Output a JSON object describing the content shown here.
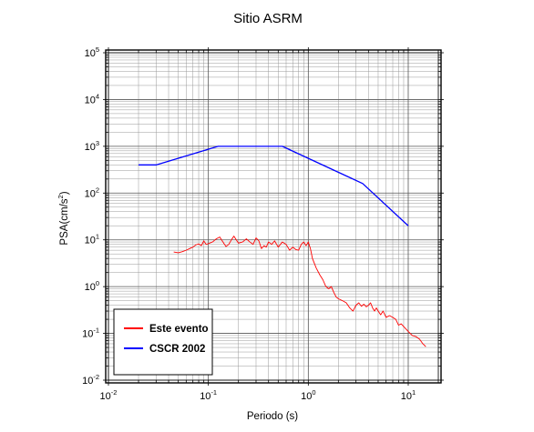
{
  "chart_data": {
    "type": "line",
    "title": "Sitio ASRM",
    "xlabel": "Periodo (s)",
    "ylabel": "PSA(cm/s²)",
    "ylabel_parts": {
      "base": "PSA(cm/s",
      "sup": "2",
      "end": ")"
    },
    "x_scale": "log",
    "y_scale": "log",
    "xlim": [
      0.01,
      20
    ],
    "ylim": [
      0.01,
      100000
    ],
    "grid": true,
    "legend_position": "bottom-left",
    "x_ticks": [
      {
        "value": 0.01,
        "base": "10",
        "exp": "-2"
      },
      {
        "value": 0.1,
        "base": "10",
        "exp": "-1"
      },
      {
        "value": 1,
        "base": "10",
        "exp": "0"
      },
      {
        "value": 10,
        "base": "10",
        "exp": "1"
      }
    ],
    "y_ticks": [
      {
        "value": 0.01,
        "base": "10",
        "exp": "-2"
      },
      {
        "value": 0.1,
        "base": "10",
        "exp": "-1"
      },
      {
        "value": 1,
        "base": "10",
        "exp": "0"
      },
      {
        "value": 10,
        "base": "10",
        "exp": "1"
      },
      {
        "value": 100,
        "base": "10",
        "exp": "2"
      },
      {
        "value": 1000,
        "base": "10",
        "exp": "3"
      },
      {
        "value": 10000,
        "base": "10",
        "exp": "4"
      },
      {
        "value": 100000,
        "base": "10",
        "exp": "5"
      }
    ],
    "series": [
      {
        "name": "Este evento",
        "color": "#ff0000",
        "x": [
          0.045,
          0.05,
          0.055,
          0.06,
          0.065,
          0.07,
          0.075,
          0.08,
          0.085,
          0.09,
          0.095,
          0.1,
          0.11,
          0.12,
          0.13,
          0.14,
          0.15,
          0.16,
          0.17,
          0.18,
          0.2,
          0.22,
          0.24,
          0.26,
          0.28,
          0.3,
          0.32,
          0.34,
          0.36,
          0.38,
          0.4,
          0.43,
          0.46,
          0.5,
          0.55,
          0.6,
          0.65,
          0.7,
          0.75,
          0.8,
          0.85,
          0.9,
          0.95,
          1.0,
          1.05,
          1.1,
          1.2,
          1.3,
          1.4,
          1.5,
          1.6,
          1.7,
          1.8,
          1.9,
          2.0,
          2.2,
          2.4,
          2.6,
          2.8,
          3.0,
          3.2,
          3.4,
          3.6,
          3.8,
          4.0,
          4.2,
          4.4,
          4.6,
          4.8,
          5.0,
          5.3,
          5.6,
          6.0,
          6.5,
          7.0,
          7.5,
          8.0,
          8.5,
          9.0,
          10.0,
          11.0,
          12.0,
          13.0,
          14.0,
          15.0
        ],
        "y": [
          5.5,
          5.3,
          5.6,
          6.0,
          6.5,
          7.0,
          7.8,
          8.2,
          7.5,
          9.5,
          8.0,
          8.3,
          9.0,
          10.5,
          11.5,
          9.0,
          7.2,
          8.0,
          10.0,
          12.0,
          8.5,
          9.0,
          10.5,
          9.0,
          8.0,
          11.0,
          9.5,
          6.5,
          7.5,
          7.0,
          9.0,
          8.0,
          9.5,
          7.0,
          9.0,
          8.0,
          6.0,
          7.0,
          6.2,
          6.0,
          8.0,
          9.0,
          7.5,
          9.0,
          6.5,
          4.0,
          2.5,
          1.8,
          1.4,
          1.0,
          0.9,
          1.0,
          0.75,
          0.6,
          0.55,
          0.5,
          0.45,
          0.35,
          0.3,
          0.4,
          0.45,
          0.38,
          0.42,
          0.37,
          0.4,
          0.45,
          0.35,
          0.3,
          0.35,
          0.3,
          0.25,
          0.3,
          0.22,
          0.24,
          0.22,
          0.2,
          0.15,
          0.16,
          0.14,
          0.11,
          0.09,
          0.085,
          0.075,
          0.06,
          0.052
        ]
      },
      {
        "name": "CSCR 2002",
        "color": "#0000ff",
        "x": [
          0.02,
          0.03,
          0.125,
          0.55,
          3.5,
          10.0
        ],
        "y": [
          400,
          400,
          1000,
          1000,
          160,
          20
        ]
      }
    ]
  }
}
